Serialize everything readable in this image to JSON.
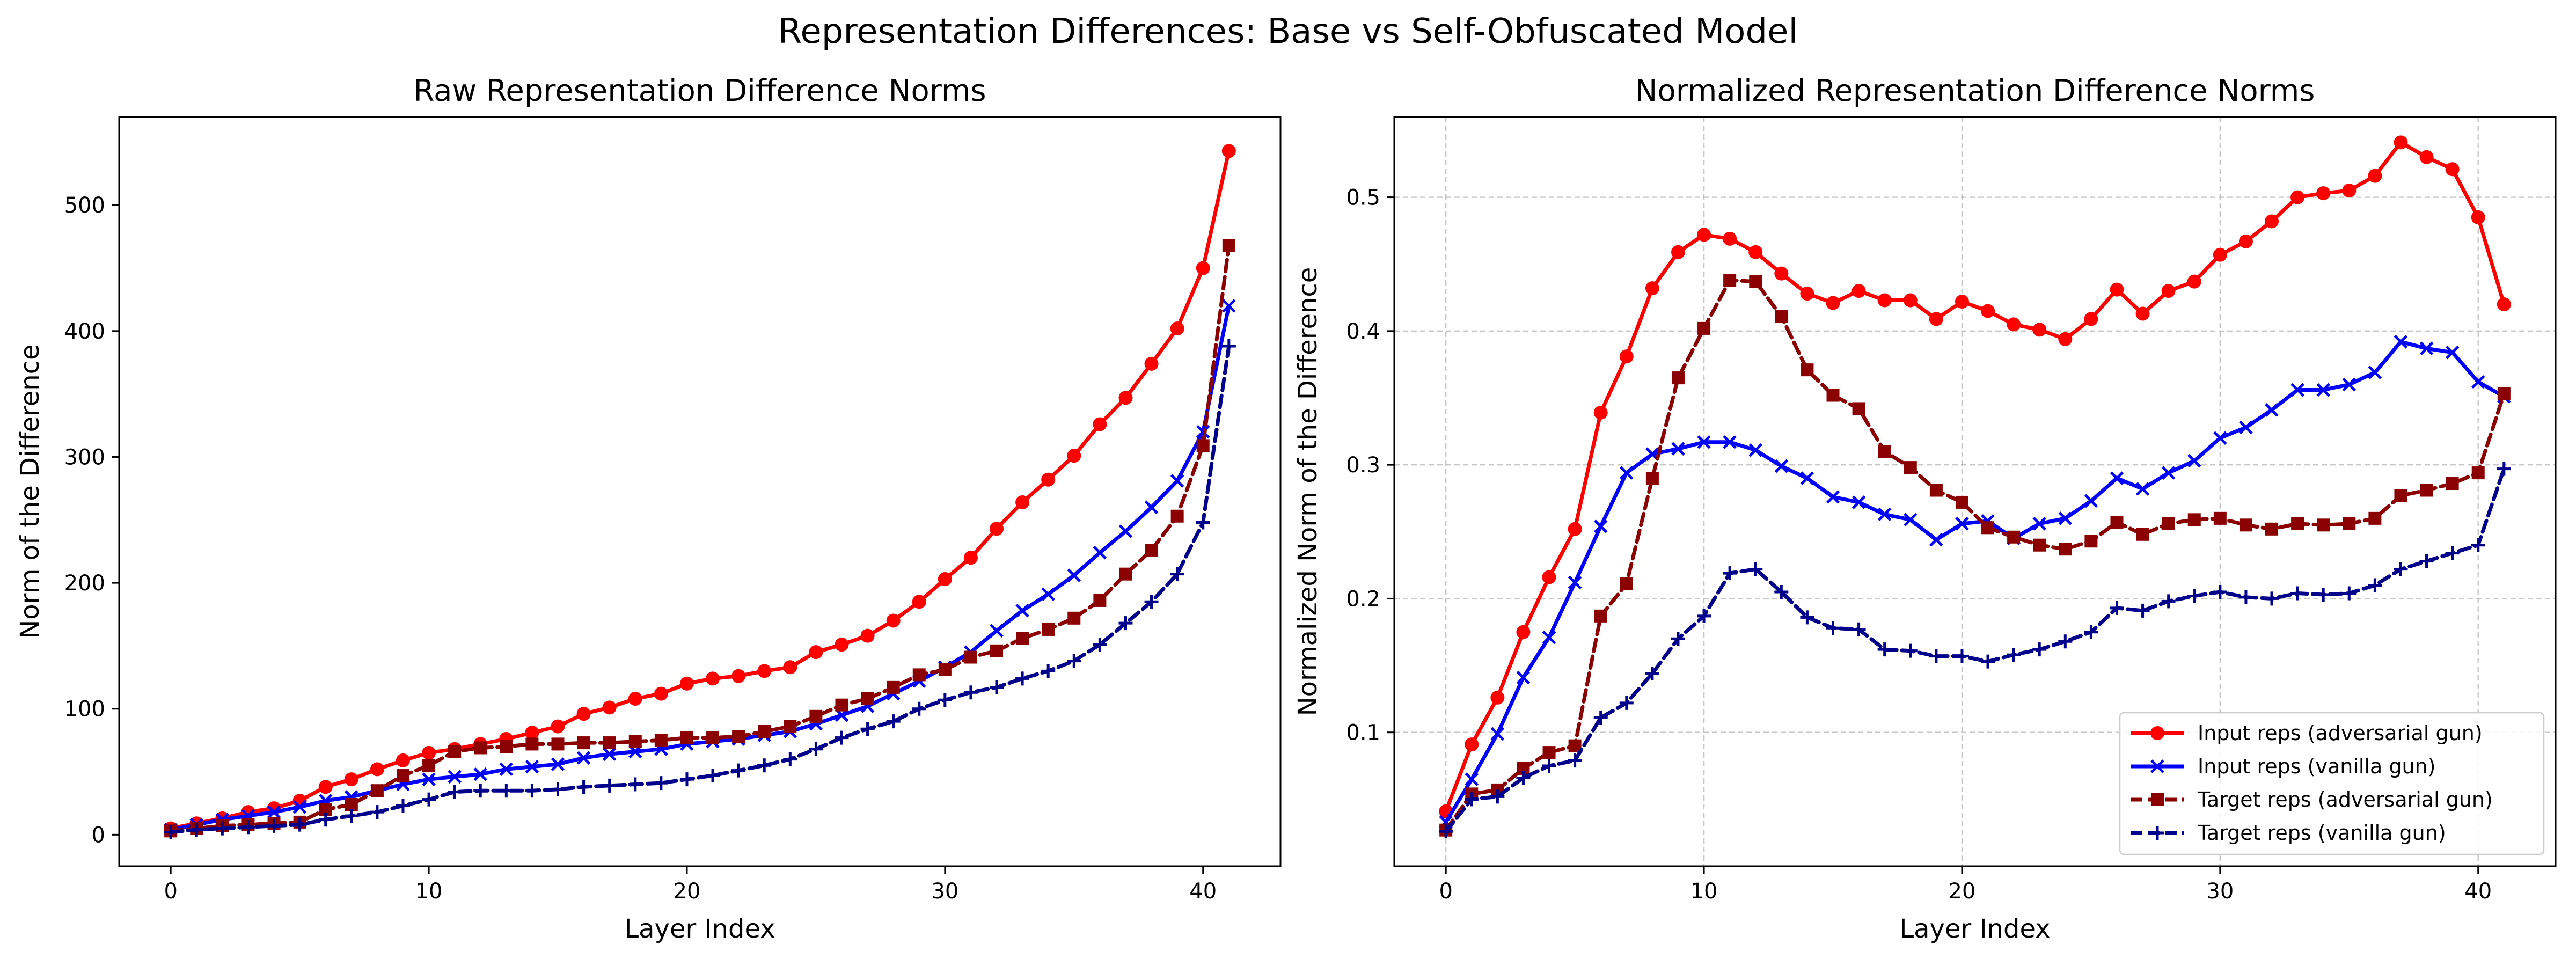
{
  "figure": {
    "suptitle": "Representation Differences: Base vs Self-Obfuscated Model"
  },
  "chart_data": [
    {
      "type": "line",
      "title": "Raw Representation Difference Norms",
      "xlabel": "Layer Index",
      "ylabel": "Norm of the Difference",
      "xlim": [
        -2,
        43
      ],
      "ylim": [
        -25,
        570
      ],
      "xticks": [
        0,
        10,
        20,
        30,
        40
      ],
      "yticks": [
        0,
        100,
        200,
        300,
        400,
        500
      ],
      "grid": false,
      "legend": null,
      "x": [
        0,
        1,
        2,
        3,
        4,
        5,
        6,
        7,
        8,
        9,
        10,
        11,
        12,
        13,
        14,
        15,
        16,
        17,
        18,
        19,
        20,
        21,
        22,
        23,
        24,
        25,
        26,
        27,
        28,
        29,
        30,
        31,
        32,
        33,
        34,
        35,
        36,
        37,
        38,
        39,
        40,
        41
      ],
      "series": [
        {
          "name": "Input reps (adversarial gun)",
          "color": "#ff0000",
          "marker": "circle",
          "dash": "solid",
          "values": [
            5,
            9,
            13,
            18,
            21,
            27,
            38,
            44,
            52,
            59,
            65,
            68,
            72,
            76,
            81,
            86,
            96,
            101,
            108,
            112,
            120,
            124,
            126,
            130,
            133,
            145,
            151,
            158,
            170,
            185,
            203,
            220,
            243,
            264,
            282,
            301,
            326,
            347,
            374,
            402,
            450,
            543
          ]
        },
        {
          "name": "Input reps (vanilla gun)",
          "color": "#0000ff",
          "marker": "x",
          "dash": "solid",
          "values": [
            4,
            8,
            12,
            15,
            18,
            22,
            27,
            30,
            35,
            40,
            44,
            46,
            48,
            52,
            54,
            56,
            61,
            64,
            66,
            68,
            72,
            74,
            76,
            79,
            82,
            88,
            95,
            102,
            112,
            122,
            133,
            145,
            162,
            178,
            191,
            206,
            224,
            241,
            260,
            281,
            320,
            420
          ]
        },
        {
          "name": "Target reps (adversarial gun)",
          "color": "#8b0000",
          "marker": "square",
          "dash": "dashed",
          "values": [
            3,
            5,
            7,
            8,
            9,
            10,
            20,
            24,
            35,
            47,
            55,
            66,
            69,
            70,
            72,
            72,
            73,
            73,
            74,
            75,
            77,
            77,
            78,
            82,
            86,
            94,
            103,
            108,
            117,
            127,
            131,
            141,
            146,
            156,
            163,
            172,
            186,
            207,
            226,
            253,
            309,
            468
          ]
        },
        {
          "name": "Target reps (vanilla gun)",
          "color": "#00008b",
          "marker": "plus",
          "dash": "dashed",
          "values": [
            2,
            4,
            5,
            6,
            7,
            8,
            12,
            15,
            18,
            23,
            28,
            34,
            35,
            35,
            35,
            36,
            38,
            39,
            40,
            41,
            44,
            47,
            51,
            55,
            60,
            68,
            77,
            84,
            90,
            100,
            107,
            113,
            117,
            124,
            130,
            138,
            151,
            168,
            185,
            207,
            248,
            388
          ]
        }
      ]
    },
    {
      "type": "line",
      "title": "Normalized Representation Difference Norms",
      "xlabel": "Layer Index",
      "ylabel": "Normalized Norm of the Difference",
      "xlim": [
        -2,
        43
      ],
      "ylim": [
        0.0,
        0.56
      ],
      "xticks": [
        0,
        10,
        20,
        30,
        40
      ],
      "yticks": [
        0.1,
        0.2,
        0.3,
        0.4,
        0.5
      ],
      "grid": true,
      "legend": "lower right",
      "x": [
        0,
        1,
        2,
        3,
        4,
        5,
        6,
        7,
        8,
        9,
        10,
        11,
        12,
        13,
        14,
        15,
        16,
        17,
        18,
        19,
        20,
        21,
        22,
        23,
        24,
        25,
        26,
        27,
        28,
        29,
        30,
        31,
        32,
        33,
        34,
        35,
        36,
        37,
        38,
        39,
        40,
        41
      ],
      "series": [
        {
          "name": "Input reps (adversarial gun)",
          "color": "#ff0000",
          "marker": "circle",
          "dash": "solid",
          "values": [
            0.041,
            0.091,
            0.126,
            0.175,
            0.216,
            0.252,
            0.339,
            0.381,
            0.432,
            0.459,
            0.472,
            0.469,
            0.459,
            0.443,
            0.428,
            0.421,
            0.43,
            0.423,
            0.423,
            0.409,
            0.422,
            0.415,
            0.405,
            0.401,
            0.394,
            0.409,
            0.431,
            0.413,
            0.43,
            0.437,
            0.457,
            0.467,
            0.482,
            0.5,
            0.503,
            0.505,
            0.516,
            0.541,
            0.53,
            0.521,
            0.485,
            0.42
          ]
        },
        {
          "name": "Input reps (vanilla gun)",
          "color": "#0000ff",
          "marker": "x",
          "dash": "solid",
          "values": [
            0.033,
            0.065,
            0.099,
            0.141,
            0.171,
            0.212,
            0.254,
            0.294,
            0.308,
            0.312,
            0.317,
            0.317,
            0.311,
            0.299,
            0.29,
            0.276,
            0.272,
            0.263,
            0.259,
            0.244,
            0.256,
            0.258,
            0.245,
            0.256,
            0.26,
            0.273,
            0.29,
            0.282,
            0.294,
            0.303,
            0.32,
            0.328,
            0.341,
            0.356,
            0.356,
            0.36,
            0.369,
            0.392,
            0.387,
            0.384,
            0.362,
            0.351
          ]
        },
        {
          "name": "Target reps (adversarial gun)",
          "color": "#8b0000",
          "marker": "square",
          "dash": "dashed",
          "values": [
            0.027,
            0.054,
            0.057,
            0.073,
            0.085,
            0.09,
            0.187,
            0.211,
            0.29,
            0.365,
            0.402,
            0.438,
            0.437,
            0.411,
            0.371,
            0.352,
            0.342,
            0.31,
            0.298,
            0.281,
            0.272,
            0.253,
            0.246,
            0.24,
            0.237,
            0.243,
            0.257,
            0.248,
            0.256,
            0.259,
            0.26,
            0.255,
            0.252,
            0.256,
            0.255,
            0.256,
            0.26,
            0.277,
            0.281,
            0.286,
            0.294,
            0.353
          ]
        },
        {
          "name": "Target reps (vanilla gun)",
          "color": "#00008b",
          "marker": "plus",
          "dash": "dashed",
          "values": [
            0.026,
            0.05,
            0.052,
            0.066,
            0.075,
            0.079,
            0.111,
            0.122,
            0.144,
            0.17,
            0.187,
            0.219,
            0.222,
            0.205,
            0.186,
            0.178,
            0.177,
            0.162,
            0.161,
            0.157,
            0.157,
            0.153,
            0.158,
            0.162,
            0.168,
            0.175,
            0.193,
            0.191,
            0.198,
            0.202,
            0.205,
            0.201,
            0.2,
            0.204,
            0.203,
            0.204,
            0.21,
            0.222,
            0.228,
            0.234,
            0.24,
            0.297
          ]
        }
      ]
    }
  ]
}
